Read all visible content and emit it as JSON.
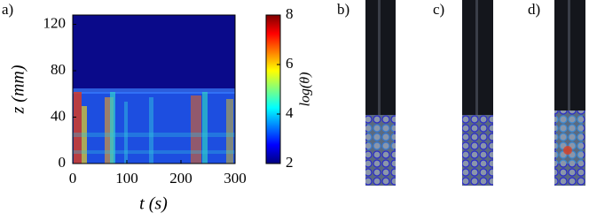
{
  "chart_data": {
    "type": "heatmap",
    "panel_label": "a)",
    "xlabel": "t (s)",
    "ylabel": "z (mm)",
    "xlim": [
      0,
      300
    ],
    "ylim": [
      0,
      128
    ],
    "xticks": [
      0,
      100,
      200,
      300
    ],
    "yticks": [
      0,
      40,
      80,
      120
    ],
    "colorbar": {
      "label": "log(θ)",
      "lim": [
        2,
        8
      ],
      "ticks": [
        2,
        4,
        6,
        8
      ]
    }
  },
  "panels": [
    {
      "label": "b)"
    },
    {
      "label": "c)"
    },
    {
      "label": "d)"
    }
  ]
}
